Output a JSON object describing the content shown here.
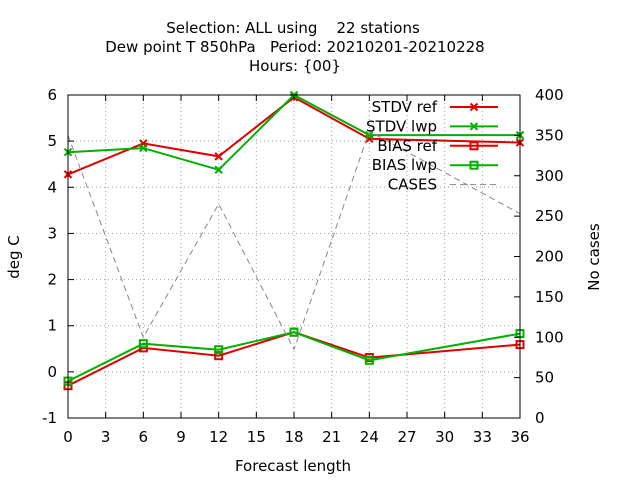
{
  "chart_data": {
    "type": "line",
    "title": [
      "Selection: ALL using    22 stations",
      "Dew point T 850hPa   Period: 20210201-20210228",
      "Hours: {00}"
    ],
    "xlabel": "Forecast length",
    "ylabel": "deg C",
    "y2label": "No cases",
    "xlim": [
      0,
      36
    ],
    "ylim": [
      -1,
      6
    ],
    "y2lim": [
      0,
      400
    ],
    "xticks": [
      0,
      3,
      6,
      9,
      12,
      15,
      18,
      21,
      24,
      27,
      30,
      33,
      36
    ],
    "yticks": [
      -1,
      0,
      1,
      2,
      3,
      4,
      5,
      6
    ],
    "y2ticks": [
      0,
      50,
      100,
      150,
      200,
      250,
      300,
      350,
      400
    ],
    "grid": true,
    "legend_position": "top-right",
    "series": [
      {
        "name": "STDV ref",
        "axis": "y",
        "color": "#dd0000",
        "marker": "x",
        "dash": false,
        "x": [
          0,
          6,
          12,
          18,
          24,
          36
        ],
        "values": [
          4.28,
          4.95,
          4.67,
          5.95,
          5.05,
          4.97
        ]
      },
      {
        "name": "STDV lwp",
        "axis": "y",
        "color": "#00b000",
        "marker": "x",
        "dash": false,
        "x": [
          0,
          6,
          12,
          18,
          24,
          36
        ],
        "values": [
          4.76,
          4.85,
          4.38,
          6.0,
          5.13,
          5.13
        ]
      },
      {
        "name": "BIAS ref",
        "axis": "y",
        "color": "#dd0000",
        "marker": "square",
        "dash": false,
        "x": [
          0,
          6,
          12,
          18,
          24,
          36
        ],
        "values": [
          -0.3,
          0.52,
          0.35,
          0.86,
          0.31,
          0.59
        ]
      },
      {
        "name": "BIAS lwp",
        "axis": "y",
        "color": "#00b000",
        "marker": "square",
        "dash": false,
        "x": [
          0,
          6,
          12,
          18,
          24,
          36
        ],
        "values": [
          -0.2,
          0.61,
          0.48,
          0.86,
          0.25,
          0.83
        ]
      },
      {
        "name": "CASES",
        "axis": "y2",
        "color": "#888888",
        "marker": "none",
        "dash": true,
        "x": [
          0,
          6,
          12,
          18,
          24,
          36
        ],
        "values": [
          350,
          100,
          265,
          85,
          355,
          253
        ]
      }
    ]
  }
}
